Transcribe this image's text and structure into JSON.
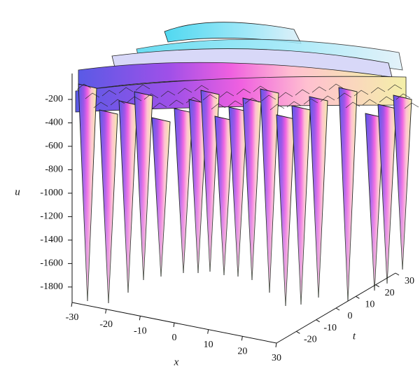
{
  "chart_data": {
    "type": "surface",
    "zlabel": "u",
    "xlabel": "x",
    "ylabel": "t",
    "zlim": [
      -1950,
      0
    ],
    "zticks": [
      -200,
      -400,
      -600,
      -800,
      -1000,
      -1200,
      -1400,
      -1600,
      -1800
    ],
    "xlim": [
      -30,
      30
    ],
    "xticks": [
      -30,
      -20,
      -10,
      0,
      10,
      20,
      30
    ],
    "ylim": [
      -30,
      30
    ],
    "yticks": [
      -20,
      -10,
      0,
      10,
      20,
      30
    ]
  }
}
